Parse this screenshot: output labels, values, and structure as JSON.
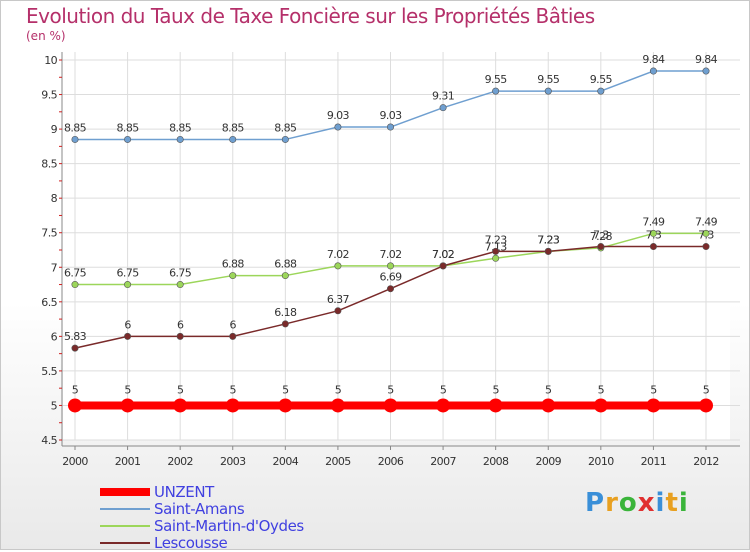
{
  "chart_data": {
    "type": "line",
    "title": "Evolution du Taux de Taxe Foncière sur les Propriétés Bâties",
    "ylabel": "(en %)",
    "xlabel": "",
    "x": [
      "2000",
      "2001",
      "2002",
      "2003",
      "2004",
      "2005",
      "2006",
      "2007",
      "2008",
      "2009",
      "2010",
      "2011",
      "2012"
    ],
    "yticks": [
      "4.5",
      "5",
      "5.5",
      "6",
      "6.5",
      "7",
      "7.5",
      "8",
      "8.5",
      "9",
      "9.5",
      "10"
    ],
    "ylim": [
      4.5,
      10
    ],
    "grid": true,
    "legend_position": "bottom-left",
    "series": [
      {
        "name": "Saint-Amans",
        "color": "#6f9fd0",
        "values": [
          8.85,
          8.85,
          8.85,
          8.85,
          8.85,
          9.03,
          9.03,
          9.31,
          9.55,
          9.55,
          9.55,
          9.84,
          9.84
        ],
        "labels": [
          "8.85",
          "8.85",
          "8.85",
          "8.85",
          "8.85",
          "9.03",
          "9.03",
          "9.31",
          "9.55",
          "9.55",
          "9.55",
          "9.84",
          "9.84"
        ]
      },
      {
        "name": "Saint-Martin-d'Oydes",
        "color": "#9cd65a",
        "values": [
          6.75,
          6.75,
          6.75,
          6.88,
          6.88,
          7.02,
          7.02,
          7.02,
          7.13,
          7.23,
          7.28,
          7.49,
          7.49
        ],
        "labels": [
          "6.75",
          "6.75",
          "6.75",
          "6.88",
          "6.88",
          "7.02",
          "7.02",
          "7.02",
          "7.13",
          "7.23",
          "7.28",
          "7.49",
          "7.49"
        ]
      },
      {
        "name": "Lescousse",
        "color": "#7a2a2a",
        "values": [
          5.83,
          6,
          6,
          6,
          6.18,
          6.37,
          6.69,
          7.02,
          7.23,
          7.23,
          7.3,
          7.3,
          7.3
        ],
        "labels": [
          "5.83",
          "6",
          "6",
          "6",
          "6.18",
          "6.37",
          "6.69",
          "7.02",
          "7.23",
          "7.23",
          "7.3",
          "7.3",
          "7.3"
        ]
      },
      {
        "name": "UNZENT",
        "color": "#ff0000",
        "values": [
          5,
          5,
          5,
          5,
          5,
          5,
          5,
          5,
          5,
          5,
          5,
          5,
          5
        ],
        "labels": [
          "5",
          "5",
          "5",
          "5",
          "5",
          "5",
          "5",
          "5",
          "5",
          "5",
          "5",
          "5",
          "5"
        ]
      }
    ],
    "legend": [
      {
        "name": "UNZENT",
        "color": "#ff0000"
      },
      {
        "name": "Saint-Amans",
        "color": "#6f9fd0"
      },
      {
        "name": "Saint-Martin-d'Oydes",
        "color": "#9cd65a"
      },
      {
        "name": "Lescousse",
        "color": "#7a2a2a"
      }
    ]
  },
  "logo": {
    "letters": [
      "P",
      "r",
      "o",
      "x",
      "i",
      "t",
      "i"
    ],
    "colors": [
      "#3a8fd8",
      "#e8a020",
      "#3ab43a",
      "#e03030",
      "#3a8fd8",
      "#e8a020",
      "#3ab43a"
    ]
  }
}
